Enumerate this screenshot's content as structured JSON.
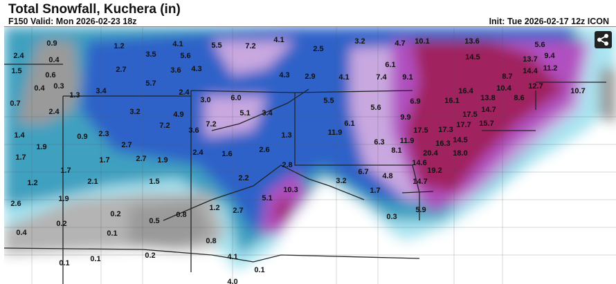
{
  "header": {
    "title": "Total Snowfall, Kuchera (in)",
    "valid": "F150 Valid: Mon 2026-02-23 18z",
    "init": "Init: Tue 2026-02-17 12z ICON"
  },
  "share_button": {
    "icon": "share-icon"
  },
  "map": {
    "colors": {
      "gray_dark": "#9a9a9a",
      "gray_light": "#d0d0d0",
      "cyan_light": "#a8e4f0",
      "teal": "#3fa0c0",
      "blue": "#2d62c8",
      "blue_dark": "#1f3fb0",
      "lavender": "#c9a8e0",
      "magenta": "#b050c0",
      "crimson": "#a0205e"
    },
    "snow_totals": [
      "0.9",
      "2.4",
      "0.4",
      "1.5",
      "0.6",
      "0.4",
      "0.3",
      "0.7",
      "1.3",
      "1.2",
      "3.5",
      "4.1",
      "5.6",
      "5.5",
      "7.2",
      "4.1",
      "2.7",
      "3.6",
      "4.3",
      "5.7",
      "3.4",
      "2.4",
      "3.0",
      "6.0",
      "4.3",
      "2.9",
      "3.2",
      "4.9",
      "5.1",
      "3.4",
      "7.2",
      "3.6",
      "7.2",
      "2.4",
      "1.4",
      "0.9",
      "2.3",
      "1.3",
      "1.9",
      "2.7",
      "2.4",
      "1.6",
      "2.6",
      "1.7",
      "1.7",
      "2.7",
      "1.9",
      "1.7",
      "1.2",
      "2.1",
      "1.5",
      "2.2",
      "2.8",
      "10.3",
      "5.1",
      "1.9",
      "2.6",
      "1.2",
      "2.7",
      "0.2",
      "0.8",
      "0.5",
      "0.2",
      "0.4",
      "0.1",
      "0.8",
      "4.1",
      "0.2",
      "0.1",
      "0.1",
      "0.1",
      "4.0",
      "2.5",
      "3.2",
      "4.7",
      "10.1",
      "13.6",
      "14.5",
      "5.6",
      "9.4",
      "13.7",
      "14.4",
      "11.2",
      "6.1",
      "7.4",
      "9.1",
      "4.1",
      "8.7",
      "12.7",
      "16.4",
      "10.4",
      "10.7",
      "5.5",
      "6.9",
      "16.1",
      "13.8",
      "8.6",
      "5.6",
      "17.5",
      "14.7",
      "9.9",
      "15.7",
      "6.1",
      "11.9",
      "17.5",
      "17.3",
      "17.7",
      "14.5",
      "6.3",
      "11.9",
      "8.1",
      "16.3",
      "20.4",
      "18.0",
      "14.6",
      "19.2",
      "6.7",
      "4.8",
      "3.2",
      "14.7",
      "1.7",
      "5.9",
      "0.3"
    ]
  }
}
